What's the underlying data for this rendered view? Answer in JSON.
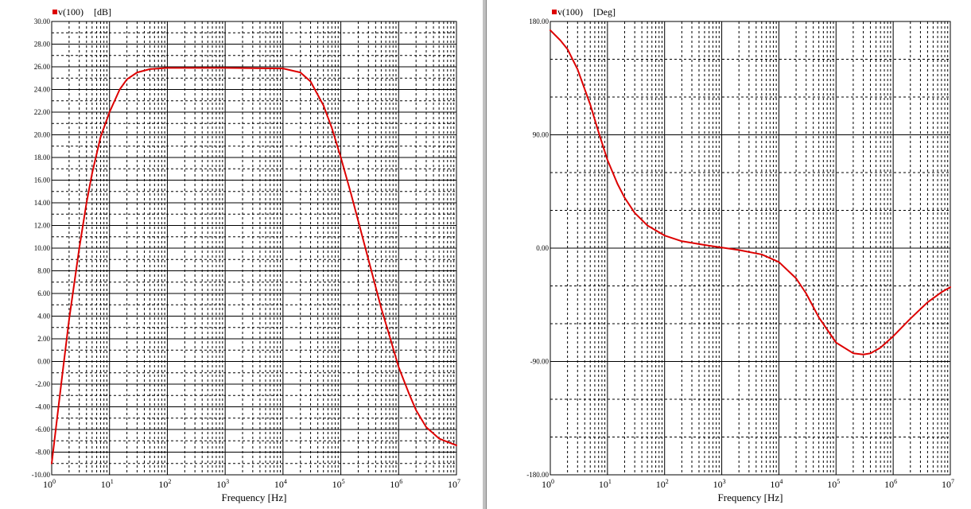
{
  "colors": {
    "trace": "#dd0000",
    "grid": "#000000",
    "background": "#ffffff",
    "divider": "#c0c0c0"
  },
  "chart_data": [
    {
      "type": "line",
      "legend": {
        "series_name": "v(100)",
        "unit": "[dB]",
        "placement": "top-left",
        "marker": "red-square"
      },
      "xlabel": "Frequency [Hz]",
      "x_scale": "log",
      "xlim": [
        1,
        10000000
      ],
      "x_ticks": [
        {
          "base": "10",
          "exp": "0"
        },
        {
          "base": "10",
          "exp": "1"
        },
        {
          "base": "10",
          "exp": "2"
        },
        {
          "base": "10",
          "exp": "3"
        },
        {
          "base": "10",
          "exp": "4"
        },
        {
          "base": "10",
          "exp": "5"
        },
        {
          "base": "10",
          "exp": "6"
        },
        {
          "base": "10",
          "exp": "7"
        }
      ],
      "ylim": [
        -10,
        30
      ],
      "y_ticks": [
        "30.00",
        "28.00",
        "26.00",
        "24.00",
        "22.00",
        "20.00",
        "18.00",
        "16.00",
        "14.00",
        "12.00",
        "10.00",
        "8.00",
        "6.00",
        "4.00",
        "2.00",
        "0.00",
        "-2.00",
        "-4.00",
        "-6.00",
        "-8.00",
        "-10.00"
      ],
      "grid": true,
      "series": [
        {
          "x": [
            1,
            1.5,
            2,
            3,
            4,
            5,
            7,
            10,
            15,
            20,
            30,
            50,
            100,
            1000,
            10000,
            20000,
            30000,
            50000,
            70000,
            100000,
            150000,
            200000,
            300000,
            500000,
            700000,
            1000000,
            1500000,
            2000000,
            3000000,
            5000000,
            7000000,
            10000000
          ],
          "values": [
            -9.0,
            -1.5,
            3.7,
            10.0,
            14.0,
            16.6,
            19.8,
            22.0,
            24.0,
            24.9,
            25.5,
            25.8,
            25.9,
            25.9,
            25.85,
            25.5,
            24.7,
            22.6,
            20.6,
            18.0,
            14.8,
            12.4,
            9.0,
            4.7,
            2.2,
            -0.5,
            -2.8,
            -4.3,
            -5.8,
            -6.8,
            -7.1,
            -7.4
          ]
        }
      ]
    },
    {
      "type": "line",
      "legend": {
        "series_name": "v(100)",
        "unit": "[Deg]",
        "placement": "top-left",
        "marker": "red-square"
      },
      "xlabel": "Frequency [Hz]",
      "x_scale": "log",
      "xlim": [
        1,
        10000000
      ],
      "x_ticks": [
        {
          "base": "10",
          "exp": "0"
        },
        {
          "base": "10",
          "exp": "1"
        },
        {
          "base": "10",
          "exp": "2"
        },
        {
          "base": "10",
          "exp": "3"
        },
        {
          "base": "10",
          "exp": "4"
        },
        {
          "base": "10",
          "exp": "5"
        },
        {
          "base": "10",
          "exp": "6"
        },
        {
          "base": "10",
          "exp": "7"
        }
      ],
      "ylim": [
        -180,
        180
      ],
      "y_ticks": [
        "180.00",
        "90.00",
        "0.00",
        "-90.00",
        "-180.00"
      ],
      "grid": true,
      "series": [
        {
          "x": [
            1,
            1.5,
            2,
            3,
            5,
            7,
            10,
            15,
            20,
            30,
            50,
            100,
            200,
            500,
            1000,
            2000,
            5000,
            10000,
            20000,
            30000,
            50000,
            100000,
            200000,
            300000,
            400000,
            600000,
            1000000,
            2000000,
            4000000,
            7000000,
            10000000
          ],
          "values": [
            173,
            165,
            158,
            142,
            114,
            92,
            70,
            51,
            40,
            28,
            18,
            10,
            5.5,
            2.5,
            0.5,
            -1.5,
            -5,
            -11,
            -24,
            -36,
            -55,
            -75,
            -83.5,
            -84.5,
            -83.5,
            -79,
            -70,
            -56,
            -43,
            -35,
            -31
          ]
        }
      ]
    }
  ]
}
